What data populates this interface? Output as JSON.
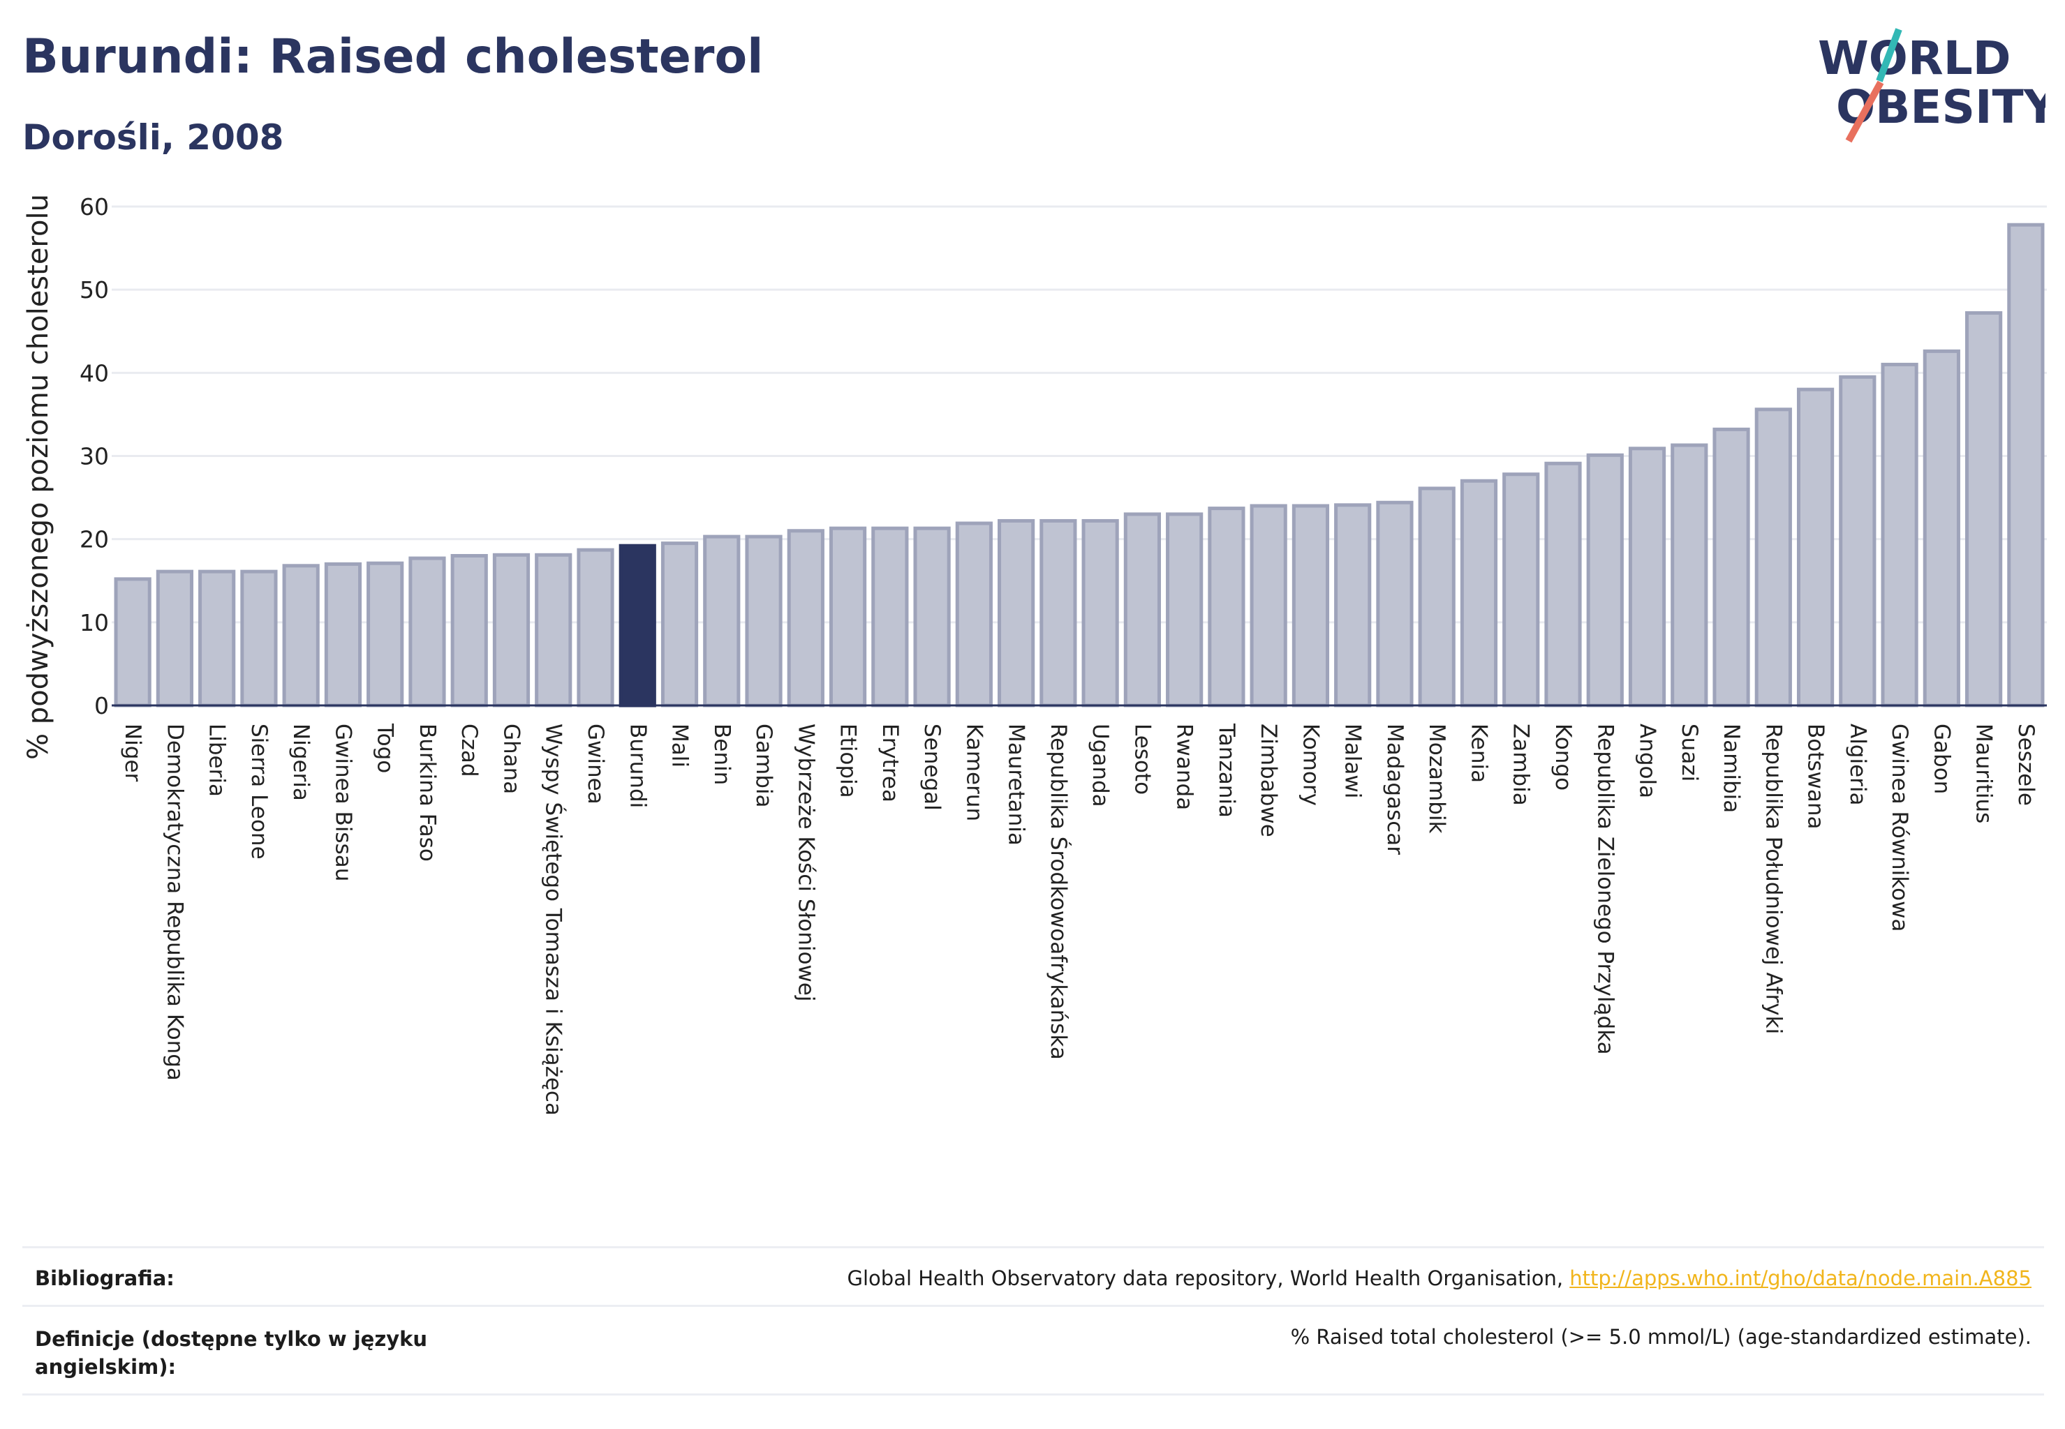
{
  "header": {
    "title": "Burundi: Raised cholesterol",
    "subtitle": "Dorośli, 2008"
  },
  "logo": {
    "line1": "WORLD",
    "line2": "OBESITY",
    "colors": {
      "text": "#2b3560",
      "slash_teal": "#33b8b5",
      "slash_coral": "#e8705e"
    }
  },
  "chart_data": {
    "type": "bar",
    "ylabel": "% podwyższonego poziomu cholesterolu",
    "ylim": [
      0,
      60
    ],
    "yticks": [
      0,
      10,
      20,
      30,
      40,
      50,
      60
    ],
    "grid": true,
    "highlight": "Burundi",
    "colors": {
      "bar": "#bfc3d2",
      "bar_edge": "#9ea3ba",
      "highlight": "#2b3560"
    },
    "categories": [
      "Niger",
      "Demokratyczna Republika Konga",
      "Liberia",
      "Sierra Leone",
      "Nigeria",
      "Gwinea Bissau",
      "Togo",
      "Burkina Faso",
      "Czad",
      "Ghana",
      "Wyspy Świętego Tomasza i Książęca",
      "Gwinea",
      "Burundi",
      "Mali",
      "Benin",
      "Gambia",
      "Wybrzeże Kości Słoniowej",
      "Etiopia",
      "Erytrea",
      "Senegal",
      "Kamerun",
      "Mauretania",
      "Republika Środkowoafrykańska",
      "Uganda",
      "Lesoto",
      "Rwanda",
      "Tanzania",
      "Zimbabwe",
      "Komory",
      "Malawi",
      "Madagascar",
      "Mozambik",
      "Kenia",
      "Zambia",
      "Kongo",
      "Republika Zielonego Przylądka",
      "Angola",
      "Suazi",
      "Namibia",
      "Republika Południowej Afryki",
      "Botswana",
      "Algieria",
      "Gwinea Równikowa",
      "Gabon",
      "Mauritius",
      "Seszele"
    ],
    "values": [
      15.2,
      16.1,
      16.1,
      16.1,
      16.8,
      17.0,
      17.1,
      17.7,
      18.0,
      18.1,
      18.1,
      18.7,
      19.2,
      19.5,
      20.3,
      20.3,
      21.0,
      21.3,
      21.3,
      21.3,
      21.9,
      22.2,
      22.2,
      22.2,
      23.0,
      23.0,
      23.7,
      24.0,
      24.0,
      24.1,
      24.4,
      26.1,
      27.0,
      27.8,
      29.1,
      30.1,
      30.9,
      31.3,
      33.2,
      35.6,
      38.0,
      39.5,
      41.0,
      42.6,
      47.2,
      57.8
    ]
  },
  "footer": {
    "bibliography_label": "Bibliografia:",
    "bibliography_text": "Global Health Observatory data repository, World Health Organisation, ",
    "bibliography_link": "http://apps.who.int/gho/data/node.main.A885",
    "definition_label": "Definicje (dostępne tylko w języku angielskim):",
    "definition_text": "% Raised total cholesterol (>= 5.0 mmol/L) (age-standardized estimate)."
  }
}
